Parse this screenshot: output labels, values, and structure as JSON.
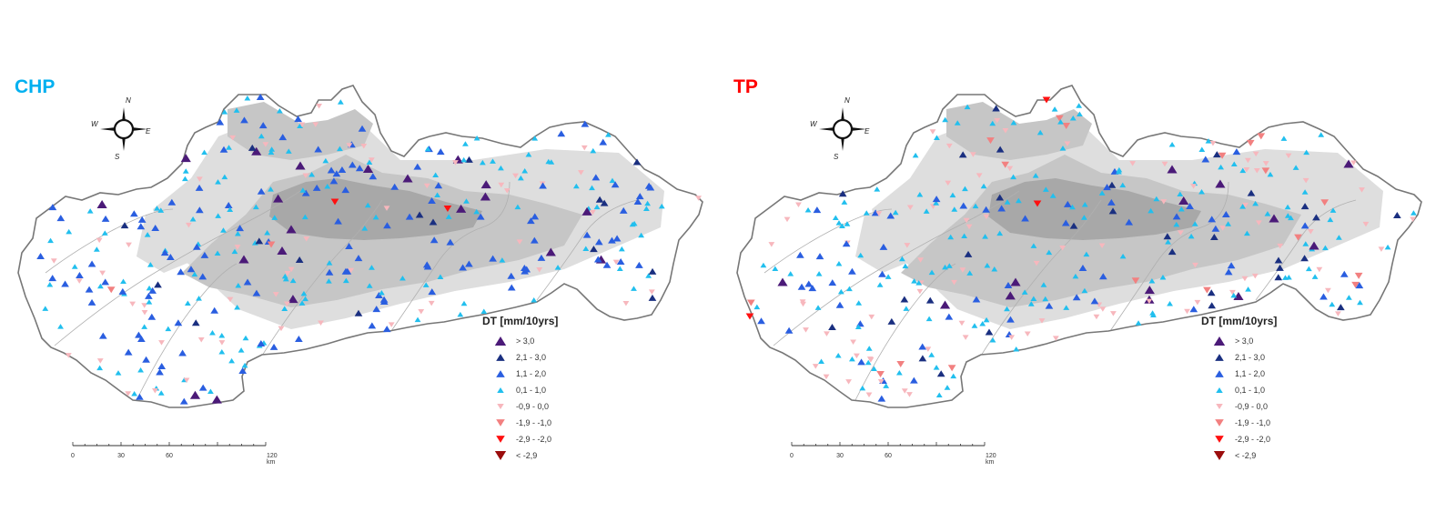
{
  "panels": [
    {
      "title": "CHP",
      "title_color": "#00b0f0"
    },
    {
      "title": "TP",
      "title_color": "#ff0000"
    }
  ],
  "legend": {
    "title": "DT [mm/10yrs]",
    "classes": [
      {
        "label": "> 3,0",
        "color": "#4b1a78",
        "dir": "up",
        "size": "large"
      },
      {
        "label": "2,1 - 3,0",
        "color": "#1a2f80",
        "dir": "up",
        "size": "medium"
      },
      {
        "label": "1,1 - 2,0",
        "color": "#2a5ee0",
        "dir": "up",
        "size": "medium"
      },
      {
        "label": "0,1 - 1,0",
        "color": "#21bfee",
        "dir": "up",
        "size": "small"
      },
      {
        "label": "-0,9 - 0,0",
        "color": "#f7b7bd",
        "dir": "down",
        "size": "small"
      },
      {
        "label": "-1,9 - -1,0",
        "color": "#f28080",
        "dir": "down",
        "size": "medium"
      },
      {
        "label": "-2,9 - -2,0",
        "color": "#ff1010",
        "dir": "down",
        "size": "medium"
      },
      {
        "label": "< -2,9",
        "color": "#9b0d0d",
        "dir": "down",
        "size": "large"
      }
    ]
  },
  "scale": {
    "ticks": [
      "0",
      "30",
      "60",
      "120 km"
    ]
  },
  "compass": {
    "n": "N",
    "e": "E",
    "s": "S",
    "w": "W"
  },
  "colors": {
    "outline": "#777777",
    "land": "#ffffff",
    "relief_low": "#dedede",
    "relief_mid": "#c6c6c6",
    "relief_high": "#a8a8a8",
    "river": "#b0b0b0"
  }
}
